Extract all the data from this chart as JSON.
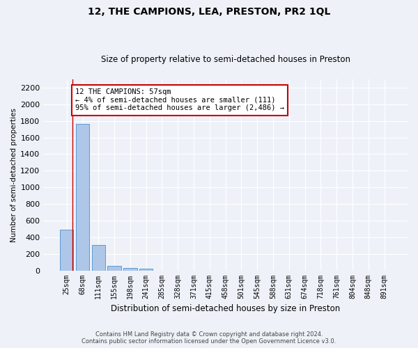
{
  "title": "12, THE CAMPIONS, LEA, PRESTON, PR2 1QL",
  "subtitle": "Size of property relative to semi-detached houses in Preston",
  "xlabel": "Distribution of semi-detached houses by size in Preston",
  "ylabel": "Number of semi-detached properties",
  "bar_labels": [
    "25sqm",
    "68sqm",
    "111sqm",
    "155sqm",
    "198sqm",
    "241sqm",
    "285sqm",
    "328sqm",
    "371sqm",
    "415sqm",
    "458sqm",
    "501sqm",
    "545sqm",
    "588sqm",
    "631sqm",
    "674sqm",
    "718sqm",
    "761sqm",
    "804sqm",
    "848sqm",
    "891sqm"
  ],
  "bar_values": [
    490,
    1760,
    305,
    58,
    30,
    20,
    0,
    0,
    0,
    0,
    0,
    0,
    0,
    0,
    0,
    0,
    0,
    0,
    0,
    0,
    0
  ],
  "bar_color": "#aec6e8",
  "bar_edge_color": "#5b9bd5",
  "ylim": [
    0,
    2300
  ],
  "yticks": [
    0,
    200,
    400,
    600,
    800,
    1000,
    1200,
    1400,
    1600,
    1800,
    2000,
    2200
  ],
  "annotation_box_text": "12 THE CAMPIONS: 57sqm\n← 4% of semi-detached houses are smaller (111)\n95% of semi-detached houses are larger (2,486) →",
  "annotation_box_color": "#ffffff",
  "annotation_box_edge_color": "#cc0000",
  "footer_line1": "Contains HM Land Registry data © Crown copyright and database right 2024.",
  "footer_line2": "Contains public sector information licensed under the Open Government Licence v3.0.",
  "background_color": "#eef2f8",
  "grid_color": "#ffffff",
  "fig_width": 6.0,
  "fig_height": 5.0,
  "red_line_x": 0.38
}
